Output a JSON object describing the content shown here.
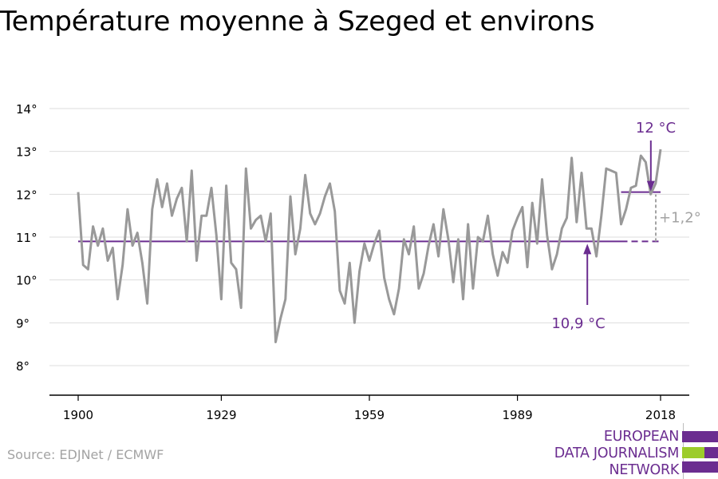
{
  "title": "Température moyenne à Szeged et environs",
  "source": "Source: EDJNet / ECMWF",
  "logo": {
    "lines": [
      "EUROPEAN",
      "DATA JOURNALISM",
      "NETWORK"
    ],
    "colors": {
      "purple": "#6b2d90",
      "green": "#9ccc2b"
    }
  },
  "colors": {
    "series": "#999999",
    "reference": "#6b2d90",
    "difference": "#a3a3a3",
    "grid": "#dddddd",
    "axis": "#000000"
  },
  "chart_data": {
    "type": "line",
    "title": "Température moyenne à Szeged et environs",
    "xlabel": "",
    "ylabel": "",
    "xlim": [
      1900,
      2018
    ],
    "ylim": [
      8,
      14
    ],
    "grid": true,
    "x_ticks": [
      {
        "value": 1900,
        "label": "1900"
      },
      {
        "value": 1929,
        "label": "1929"
      },
      {
        "value": 1959,
        "label": "1959"
      },
      {
        "value": 1989,
        "label": "1989"
      },
      {
        "value": 2018,
        "label": "2018"
      }
    ],
    "y_ticks": [
      {
        "value": 8,
        "label": "8°"
      },
      {
        "value": 9,
        "label": "9°"
      },
      {
        "value": 10,
        "label": "10°"
      },
      {
        "value": 11,
        "label": "11°"
      },
      {
        "value": 12,
        "label": "12°"
      },
      {
        "value": 13,
        "label": "13°"
      },
      {
        "value": 14,
        "label": "14°"
      }
    ],
    "series": [
      {
        "x_start": 1900,
        "values": [
          12.05,
          10.35,
          10.25,
          11.25,
          10.8,
          11.2,
          10.45,
          10.75,
          9.55,
          10.35,
          11.65,
          10.8,
          11.1,
          10.4,
          9.45,
          11.65,
          12.35,
          11.7,
          12.25,
          11.5,
          11.9,
          12.15,
          10.9,
          12.55,
          10.45,
          11.5,
          11.5,
          12.15,
          11.05,
          9.55,
          12.2,
          10.4,
          10.25,
          9.35,
          12.6,
          11.2,
          11.4,
          11.5,
          10.9,
          11.55,
          8.55,
          9.1,
          9.55,
          11.95,
          10.6,
          11.2,
          12.45,
          11.55,
          11.3,
          11.55,
          11.95,
          12.25,
          11.6,
          9.75,
          9.45,
          10.4,
          9.0,
          10.2,
          10.85,
          10.45,
          10.85,
          11.15,
          10.05,
          9.55,
          9.2,
          9.8,
          10.95,
          10.6,
          11.25,
          9.8,
          10.15,
          10.8,
          11.3,
          10.55,
          11.65,
          10.95,
          9.95,
          10.95,
          9.55,
          11.3,
          9.8,
          11.0,
          10.9,
          11.5,
          10.6,
          10.1,
          10.65,
          10.4,
          11.15,
          11.45,
          11.7,
          10.3,
          11.8,
          10.85,
          12.35,
          11.05,
          10.25,
          10.6,
          11.2,
          11.45,
          12.85,
          11.35,
          12.5,
          11.2,
          11.2,
          10.55,
          11.5,
          12.6,
          12.55,
          12.5,
          11.3,
          11.65,
          12.15,
          12.2,
          12.9,
          12.75,
          12.0,
          12.25,
          13.05
        ]
      }
    ],
    "reference_lines": [
      {
        "value": 10.9,
        "from": 1900,
        "to": 2018,
        "dashed_from": 2010,
        "label": "10,9 °C"
      },
      {
        "value": 12.05,
        "from": 2010,
        "to": 2018,
        "label": "12 °C"
      }
    ],
    "difference_annotation": {
      "label": "+1,2°",
      "from": 10.9,
      "to": 12.05,
      "x": 2018
    }
  }
}
